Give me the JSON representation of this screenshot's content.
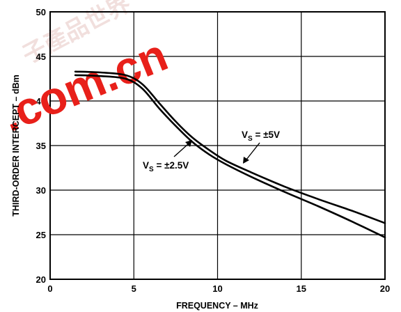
{
  "chart_data": {
    "type": "line",
    "title": "",
    "xlabel": "FREQUENCY – MHz",
    "ylabel": "THIRD-ORDER INTERCEPT – dBm",
    "xlim": [
      0,
      20
    ],
    "ylim": [
      20,
      50
    ],
    "x_ticks": [
      "0",
      "5",
      "10",
      "15",
      "20"
    ],
    "y_ticks": [
      "20",
      "25",
      "30",
      "35",
      "40",
      "45",
      "50"
    ],
    "grid": true,
    "series": [
      {
        "name": "VS = ±5V",
        "x": [
          1.5,
          3,
          4.5,
          5.5,
          6.5,
          7.5,
          8.5,
          9.5,
          10.5,
          12,
          14,
          16,
          18,
          20
        ],
        "values": [
          43.3,
          43.2,
          42.9,
          41.9,
          39.8,
          37.7,
          35.9,
          34.5,
          33.3,
          32.0,
          30.4,
          29.0,
          27.7,
          26.3
        ]
      },
      {
        "name": "VS = ±2.5V",
        "x": [
          1.5,
          3,
          4.5,
          5.5,
          6.5,
          7.5,
          8.5,
          9.5,
          10.5,
          12,
          14,
          16,
          18,
          20
        ],
        "values": [
          42.9,
          42.8,
          42.5,
          41.4,
          39.2,
          37.2,
          35.4,
          34.0,
          32.9,
          31.5,
          29.8,
          28.2,
          26.5,
          24.7
        ]
      }
    ],
    "annotations": {
      "vs5": {
        "main": "V",
        "sub": "S",
        "rest": " = ±5V"
      },
      "vs25": {
        "main": "V",
        "sub": "S",
        "rest": " = ±2.5V"
      }
    }
  },
  "watermark": {
    "big": ".com.cn",
    "faint": "子產品世界"
  },
  "colors": {
    "watermark": "#e8201a",
    "line": "#000000"
  }
}
